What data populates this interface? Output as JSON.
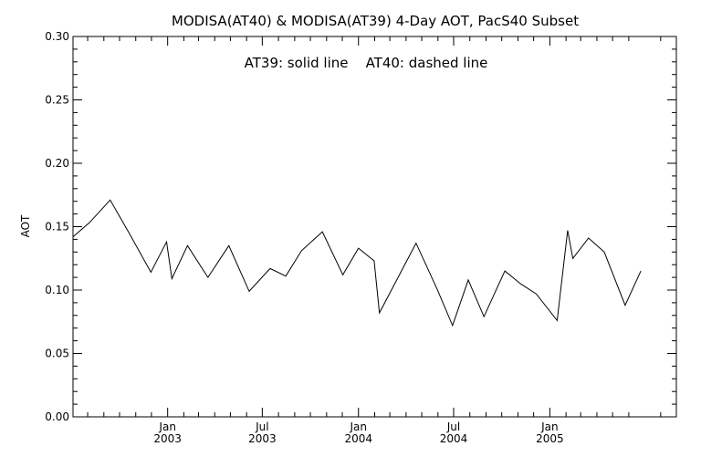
{
  "chart_data": {
    "type": "line",
    "title": "MODISA(AT40) & MODISA(AT39) 4-Day AOT, PacS40 Subset",
    "annotation": "AT39: solid line    AT40: dashed line",
    "ylabel": "AOT",
    "xlabel": "",
    "ylim": [
      0,
      0.3
    ],
    "yticks": [
      "0.00",
      "0.05",
      "0.10",
      "0.15",
      "0.20",
      "0.25",
      "0.30"
    ],
    "xlim": [
      "2002-07-04",
      "2005-08-31"
    ],
    "xticks": [
      {
        "date": "2003-01-01",
        "month": "Jan",
        "year": "2003"
      },
      {
        "date": "2003-07-01",
        "month": "Jul",
        "year": "2003"
      },
      {
        "date": "2004-01-01",
        "month": "Jan",
        "year": "2004"
      },
      {
        "date": "2004-07-01",
        "month": "Jul",
        "year": "2004"
      },
      {
        "date": "2005-01-01",
        "month": "Jan",
        "year": "2005"
      }
    ],
    "grid": false,
    "series": [
      {
        "name": "AT39",
        "style": "solid",
        "points": [
          {
            "x": "2002-07-04",
            "y": 0.142
          },
          {
            "x": "2002-08-04",
            "y": 0.153
          },
          {
            "x": "2002-09-13",
            "y": 0.171
          },
          {
            "x": "2002-10-22",
            "y": 0.143
          },
          {
            "x": "2002-11-30",
            "y": 0.114
          },
          {
            "x": "2002-12-30",
            "y": 0.138
          },
          {
            "x": "2003-01-09",
            "y": 0.109
          },
          {
            "x": "2003-02-08",
            "y": 0.135
          },
          {
            "x": "2003-03-19",
            "y": 0.11
          },
          {
            "x": "2003-04-28",
            "y": 0.135
          },
          {
            "x": "2003-06-06",
            "y": 0.099
          },
          {
            "x": "2003-07-16",
            "y": 0.117
          },
          {
            "x": "2003-08-15",
            "y": 0.111
          },
          {
            "x": "2003-09-14",
            "y": 0.131
          },
          {
            "x": "2003-10-24",
            "y": 0.146
          },
          {
            "x": "2003-12-02",
            "y": 0.112
          },
          {
            "x": "2004-01-01",
            "y": 0.133
          },
          {
            "x": "2004-01-31",
            "y": 0.123
          },
          {
            "x": "2004-02-10",
            "y": 0.082
          },
          {
            "x": "2004-04-20",
            "y": 0.137
          },
          {
            "x": "2004-05-30",
            "y": 0.101
          },
          {
            "x": "2004-06-29",
            "y": 0.072
          },
          {
            "x": "2004-07-29",
            "y": 0.108
          },
          {
            "x": "2004-08-28",
            "y": 0.079
          },
          {
            "x": "2004-10-07",
            "y": 0.115
          },
          {
            "x": "2004-11-06",
            "y": 0.105
          },
          {
            "x": "2004-12-06",
            "y": 0.097
          },
          {
            "x": "2005-01-15",
            "y": 0.076
          },
          {
            "x": "2005-02-04",
            "y": 0.147
          },
          {
            "x": "2005-02-14",
            "y": 0.125
          },
          {
            "x": "2005-03-16",
            "y": 0.141
          },
          {
            "x": "2005-04-15",
            "y": 0.13
          },
          {
            "x": "2005-05-25",
            "y": 0.088
          },
          {
            "x": "2005-06-24",
            "y": 0.115
          }
        ]
      }
    ]
  }
}
